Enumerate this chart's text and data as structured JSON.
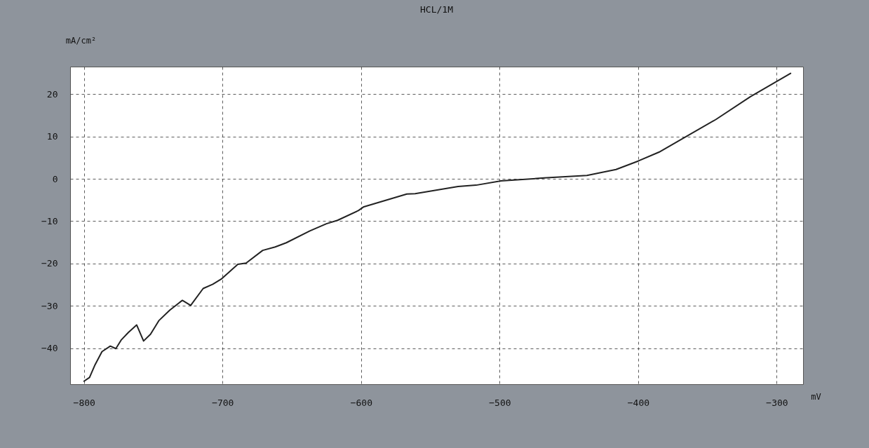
{
  "chart_data": {
    "type": "line",
    "title": "HCL/1M",
    "xlabel": "mV",
    "ylabel": "mA/cm²",
    "x": [
      -800,
      -796,
      -792,
      -787,
      -781,
      -777,
      -773,
      -768,
      -762,
      -757,
      -752,
      -746,
      -738,
      -729,
      -723,
      -714,
      -707,
      -701,
      -689,
      -683,
      -671,
      -662,
      -654,
      -637,
      -625,
      -617,
      -602,
      -598,
      -567,
      -561,
      -530,
      -517,
      -499,
      -468,
      -437,
      -416,
      -400,
      -385,
      -369,
      -344,
      -319,
      -290
    ],
    "series": [
      {
        "color": "#222222",
        "values": [
          -47.8,
          -46.9,
          -43.9,
          -40.8,
          -39.5,
          -40.1,
          -38.0,
          -36.3,
          -34.5,
          -38.3,
          -36.7,
          -33.5,
          -31.0,
          -28.7,
          -29.9,
          -25.9,
          -24.9,
          -23.7,
          -20.2,
          -19.9,
          -16.9,
          -16.1,
          -15.1,
          -12.3,
          -10.6,
          -9.8,
          -7.5,
          -6.6,
          -3.6,
          -3.5,
          -1.8,
          -1.5,
          -0.5,
          0.2,
          0.8,
          2.2,
          4.2,
          6.3,
          9.3,
          14.0,
          19.4,
          24.9
        ]
      }
    ],
    "xlim": [
      -810,
      -281
    ],
    "ylim": [
      -48.5,
      26.5
    ],
    "xticks": [
      -800,
      -700,
      -600,
      -500,
      -400,
      -300
    ],
    "yticks": [
      -40,
      -30,
      -20,
      -10,
      0,
      10,
      20
    ],
    "grid": true,
    "line_style": "solid",
    "marker": "none",
    "legend": false
  }
}
